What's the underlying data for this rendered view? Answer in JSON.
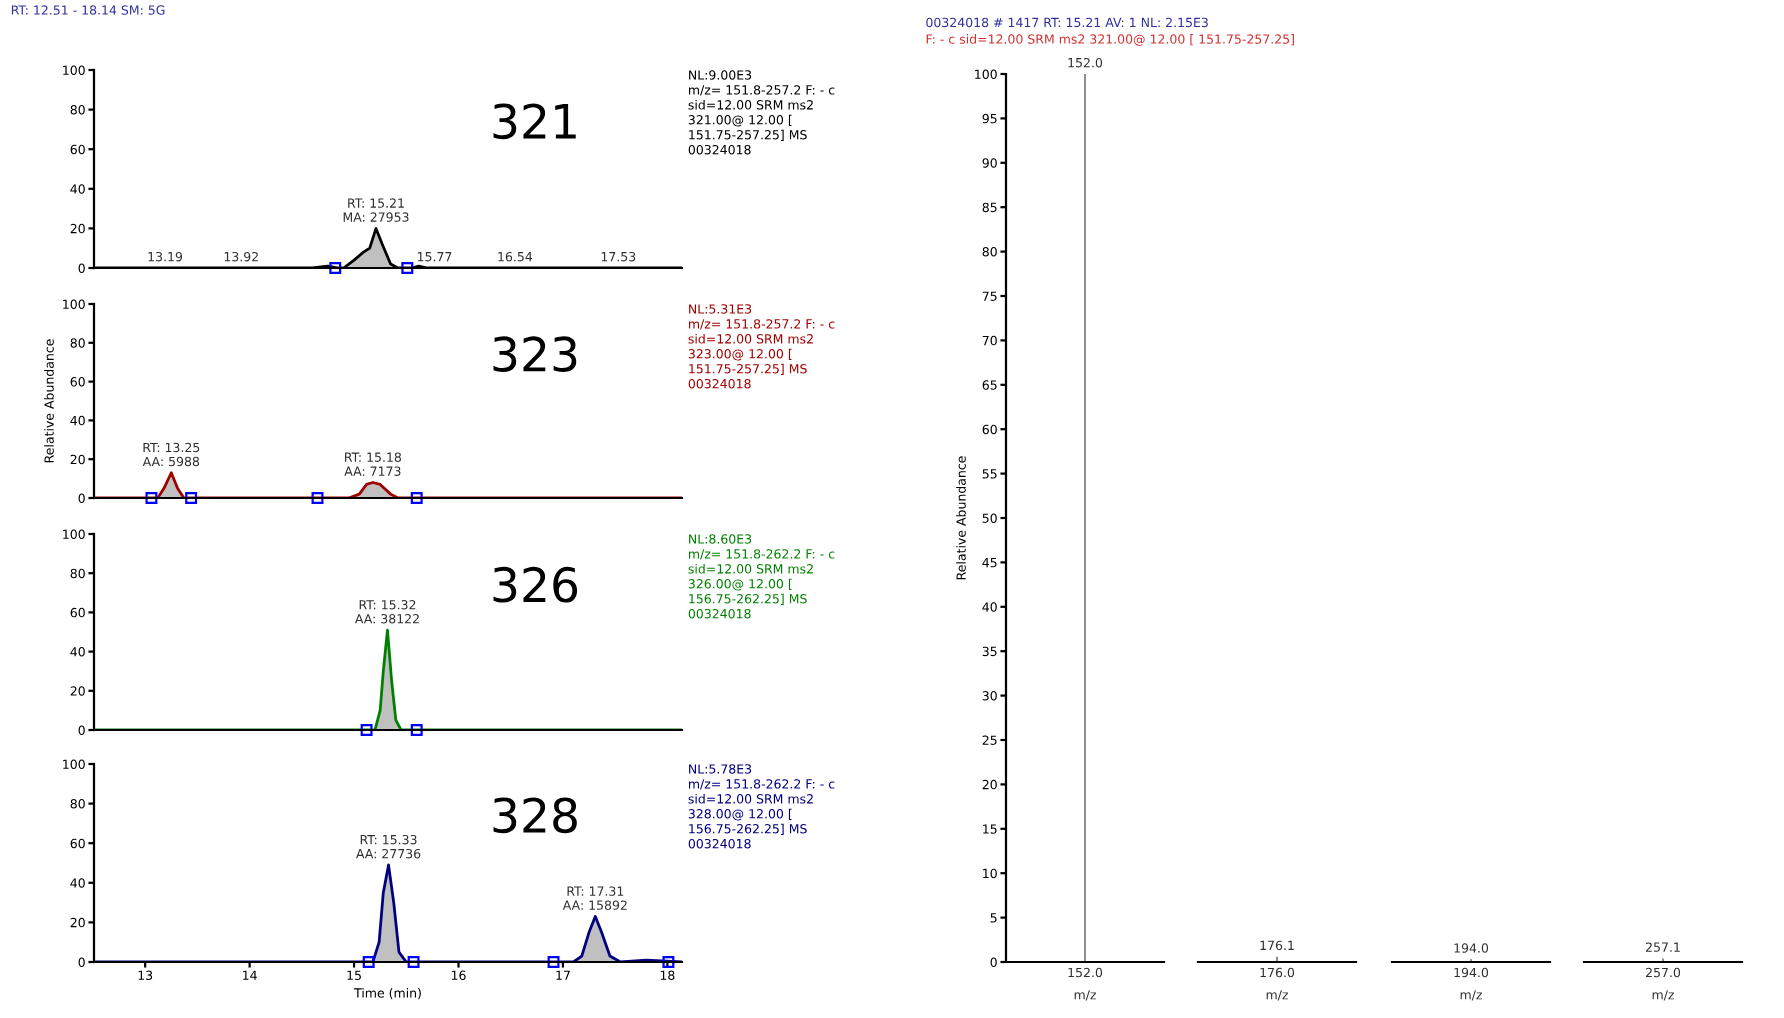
{
  "chart_data": [
    {
      "type": "line",
      "title": "RT: 12.51 - 18.14 SM: 5G",
      "x": [
        12.51,
        14.6,
        14.75,
        14.85,
        14.9,
        15.0,
        15.09,
        15.15,
        15.21,
        15.27,
        15.35,
        15.42,
        15.55,
        15.62,
        15.7,
        18.14
      ],
      "series": [
        {
          "type": "area",
          "color": "#000000",
          "values": [
            0,
            0,
            1,
            0,
            0,
            4,
            8,
            10,
            20,
            12,
            2,
            0,
            0,
            1,
            0,
            0
          ]
        },
        {
          "type": "scatter",
          "color": "#0000ff",
          "marker": "square",
          "x": [
            14.82,
            15.51
          ],
          "values": [
            0,
            0
          ]
        }
      ],
      "xlim": [
        12.51,
        18.14
      ],
      "ylim": [
        0,
        100
      ],
      "yticks": [
        0,
        20,
        40,
        60,
        80,
        100
      ],
      "tick_labels": "y",
      "grid": false,
      "annotations": [
        "NL:9.00E3\nm/z= 151.8-257.2 F: - c\nsid=12.00 SRM ms2\n321.00@ 12.00 [\n151.75-257.25] MS\n00324018",
        "321",
        {
          "text": "RT: 15.21\nMA: 27953",
          "x": 15.21,
          "y": 20
        },
        {
          "text": "13.19",
          "x": 13.19,
          "y": 0
        },
        {
          "text": "13.92",
          "x": 13.92,
          "y": 0
        },
        {
          "text": "15.77",
          "x": 15.77,
          "y": 0
        },
        {
          "text": "16.54",
          "x": 16.54,
          "y": 0
        },
        {
          "text": "17.53",
          "x": 17.53,
          "y": 0
        }
      ]
    },
    {
      "type": "line",
      "ylabel": "Relative Abundance",
      "x": [
        12.51,
        13.12,
        13.18,
        13.25,
        13.31,
        13.37,
        14.95,
        15.05,
        15.12,
        15.18,
        15.25,
        15.35,
        15.42,
        18.14
      ],
      "series": [
        {
          "type": "area",
          "color": "#a00000",
          "values": [
            0,
            0,
            5,
            13,
            5,
            0,
            0,
            2,
            7,
            8,
            7,
            2,
            0,
            0
          ]
        },
        {
          "type": "scatter",
          "color": "#0000ff",
          "marker": "square",
          "x": [
            13.06,
            13.44,
            14.65,
            15.6
          ],
          "values": [
            0,
            0,
            0,
            0
          ]
        }
      ],
      "xlim": [
        12.51,
        18.14
      ],
      "ylim": [
        0,
        100
      ],
      "yticks": [
        0,
        20,
        40,
        60,
        80,
        100
      ],
      "tick_labels": "y",
      "grid": false,
      "annotations": [
        "NL:5.31E3\nm/z= 151.8-257.2 F: - c\nsid=12.00 SRM ms2\n323.00@ 12.00 [\n151.75-257.25] MS\n00324018",
        "323",
        {
          "text": "RT: 13.25\nAA: 5988",
          "x": 13.25,
          "y": 13
        },
        {
          "text": "RT: 15.18\nAA: 7173",
          "x": 15.18,
          "y": 8
        }
      ]
    },
    {
      "type": "line",
      "x": [
        12.51,
        15.2,
        15.25,
        15.28,
        15.32,
        15.36,
        15.4,
        15.45,
        18.14
      ],
      "series": [
        {
          "type": "area",
          "color": "#008000",
          "values": [
            0,
            0,
            10,
            30,
            51,
            25,
            5,
            0,
            0
          ]
        },
        {
          "type": "scatter",
          "color": "#0000ff",
          "marker": "square",
          "x": [
            15.12,
            15.6
          ],
          "values": [
            0,
            0
          ]
        }
      ],
      "xlim": [
        12.51,
        18.14
      ],
      "ylim": [
        0,
        100
      ],
      "yticks": [
        0,
        20,
        40,
        60,
        80,
        100
      ],
      "tick_labels": "y",
      "grid": false,
      "annotations": [
        "NL:8.60E3\nm/z= 151.8-262.2 F: - c\nsid=12.00 SRM ms2\n326.00@ 12.00 [\n156.75-262.25] MS\n00324018",
        "326",
        {
          "text": "RT: 15.32\nAA: 38122",
          "x": 15.32,
          "y": 51
        }
      ]
    },
    {
      "type": "line",
      "xlabel": "Time (min)",
      "x": [
        12.51,
        15.18,
        15.24,
        15.28,
        15.33,
        15.38,
        15.43,
        15.5,
        17.1,
        17.18,
        17.25,
        17.31,
        17.37,
        17.45,
        17.55,
        17.8,
        18.14
      ],
      "series": [
        {
          "type": "area",
          "color": "#000080",
          "values": [
            0,
            0,
            10,
            35,
            49,
            30,
            5,
            0,
            0,
            3,
            15,
            23,
            15,
            3,
            0,
            1,
            0
          ]
        },
        {
          "type": "scatter",
          "color": "#0000ff",
          "marker": "square",
          "x": [
            15.14,
            15.57,
            16.91,
            18.01
          ],
          "values": [
            0,
            0,
            0,
            0
          ]
        }
      ],
      "xlim": [
        12.51,
        18.14
      ],
      "xticks": [
        13,
        14,
        15,
        16,
        17,
        18
      ],
      "ylim": [
        0,
        100
      ],
      "yticks": [
        0,
        20,
        40,
        60,
        80,
        100
      ],
      "grid": false,
      "annotations": [
        "NL:5.78E3\nm/z= 151.8-262.2 F: - c\nsid=12.00 SRM ms2\n328.00@ 12.00 [\n156.75-262.25] MS\n00324018",
        "328",
        {
          "text": "RT: 15.33\nAA: 27736",
          "x": 15.33,
          "y": 49
        },
        {
          "text": "RT: 17.31\nAA: 15892",
          "x": 17.31,
          "y": 23
        }
      ]
    },
    {
      "type": "bar",
      "title": "00324018 # 1417 RT: 15.21 AV: 1 NL: 2.15E3",
      "subtitle": "F: - c sid=12.00 SRM ms2 321.00@ 12.00 [ 151.75-257.25]",
      "ylabel": "Relative Abundance",
      "categories": [
        null
      ],
      "values": [
        100
      ],
      "color": "#707070",
      "ylim": [
        0,
        100
      ],
      "yticks": [
        0,
        5,
        10,
        15,
        20,
        25,
        30,
        35,
        40,
        45,
        50,
        55,
        60,
        65,
        70,
        75,
        80,
        85,
        90,
        95,
        100
      ],
      "grid": false,
      "annotations": [
        "152.0",
        "152.0",
        "m/z"
      ]
    },
    {
      "type": "bar",
      "categories": [
        null
      ],
      "values": [
        0.6
      ],
      "color": "#707070",
      "ylim": [
        0,
        100
      ],
      "tick_labels": false,
      "grid": false,
      "annotations": [
        "176.0",
        "176.1",
        "m/z"
      ]
    },
    {
      "type": "bar",
      "categories": [
        null
      ],
      "values": [
        0.3
      ],
      "color": "#707070",
      "ylim": [
        0,
        100
      ],
      "tick_labels": false,
      "grid": false,
      "annotations": [
        "194.0",
        "194.0",
        "m/z"
      ]
    },
    {
      "type": "bar",
      "categories": [
        null
      ],
      "values": [
        0.4
      ],
      "color": "#707070",
      "ylim": [
        0,
        100
      ],
      "tick_labels": false,
      "grid": false,
      "annotations": [
        "257.0",
        "257.1",
        "m/z"
      ]
    }
  ]
}
